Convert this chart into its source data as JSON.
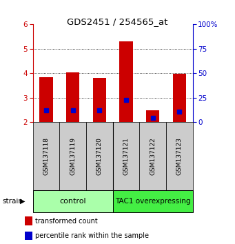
{
  "title": "GDS2451 / 254565_at",
  "samples": [
    "GSM137118",
    "GSM137119",
    "GSM137120",
    "GSM137121",
    "GSM137122",
    "GSM137123"
  ],
  "red_tops": [
    3.85,
    4.02,
    3.82,
    5.3,
    2.48,
    3.97
  ],
  "blue_vals": [
    2.48,
    2.48,
    2.48,
    2.9,
    2.18,
    2.42
  ],
  "bar_bottom": 2.0,
  "ylim_left": [
    2,
    6
  ],
  "ylim_right": [
    0,
    100
  ],
  "yticks_left": [
    2,
    3,
    4,
    5,
    6
  ],
  "yticks_right": [
    0,
    25,
    50,
    75,
    100
  ],
  "ytick_labels_right": [
    "0",
    "25",
    "50",
    "75",
    "100%"
  ],
  "control_label": "control",
  "overexp_label": "TAC1 overexpressing",
  "control_color": "#aaffaa",
  "overexp_color": "#44ee44",
  "strain_label": "strain",
  "legend_red": "transformed count",
  "legend_blue": "percentile rank within the sample",
  "red_color": "#cc0000",
  "blue_color": "#0000cc",
  "tick_area_bg": "#cccccc",
  "bar_width": 0.5,
  "gridline_color": "#000000",
  "gridline_style": ":"
}
